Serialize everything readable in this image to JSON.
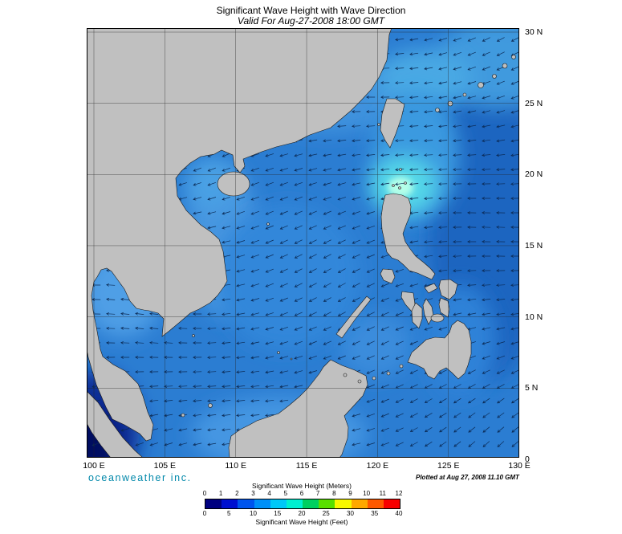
{
  "header": {
    "title": "Significant Wave Height with Wave Direction",
    "subtitle": "Valid For Aug-27-2008 18:00 GMT"
  },
  "map": {
    "x_ticks": [
      "100 E",
      "105 E",
      "110 E",
      "115 E",
      "120 E",
      "125 E",
      "130 E"
    ],
    "y_ticks": [
      "30 N",
      "25 N",
      "20 N",
      "15 N",
      "10 N",
      "5 N",
      "0"
    ],
    "lon_range": [
      100,
      130
    ],
    "lat_range": [
      0,
      30
    ],
    "grid_step_deg": 5,
    "land_color": "#c0c0c0",
    "ocean_base_color": "#2b7dd2",
    "wave_peak_color": "#b4ffe9",
    "low_wave_color": "#021060",
    "arrow_color": "#0b2a55",
    "wave_direction_note": "arrows point generally west-southwest"
  },
  "footer": {
    "brand": "oceanweather inc.",
    "brand_color": "#0088aa",
    "plotted": "Plotted at Aug 27, 2008 11.10 GMT"
  },
  "legend": {
    "meters_title": "Significant Wave Height (Meters)",
    "feet_title": "Significant Wave Height (Feet)",
    "meter_ticks": [
      "0",
      "1",
      "2",
      "3",
      "4",
      "5",
      "6",
      "7",
      "8",
      "9",
      "10",
      "11",
      "12"
    ],
    "feet_ticks": [
      "0",
      "5",
      "10",
      "15",
      "20",
      "25",
      "30",
      "35",
      "40"
    ],
    "segment_colors": [
      "#000080",
      "#0010d0",
      "#0055ee",
      "#0090f8",
      "#00c8f8",
      "#00f0d0",
      "#00d060",
      "#58e000",
      "#f8f800",
      "#ffa800",
      "#ff5800",
      "#f80000"
    ]
  }
}
